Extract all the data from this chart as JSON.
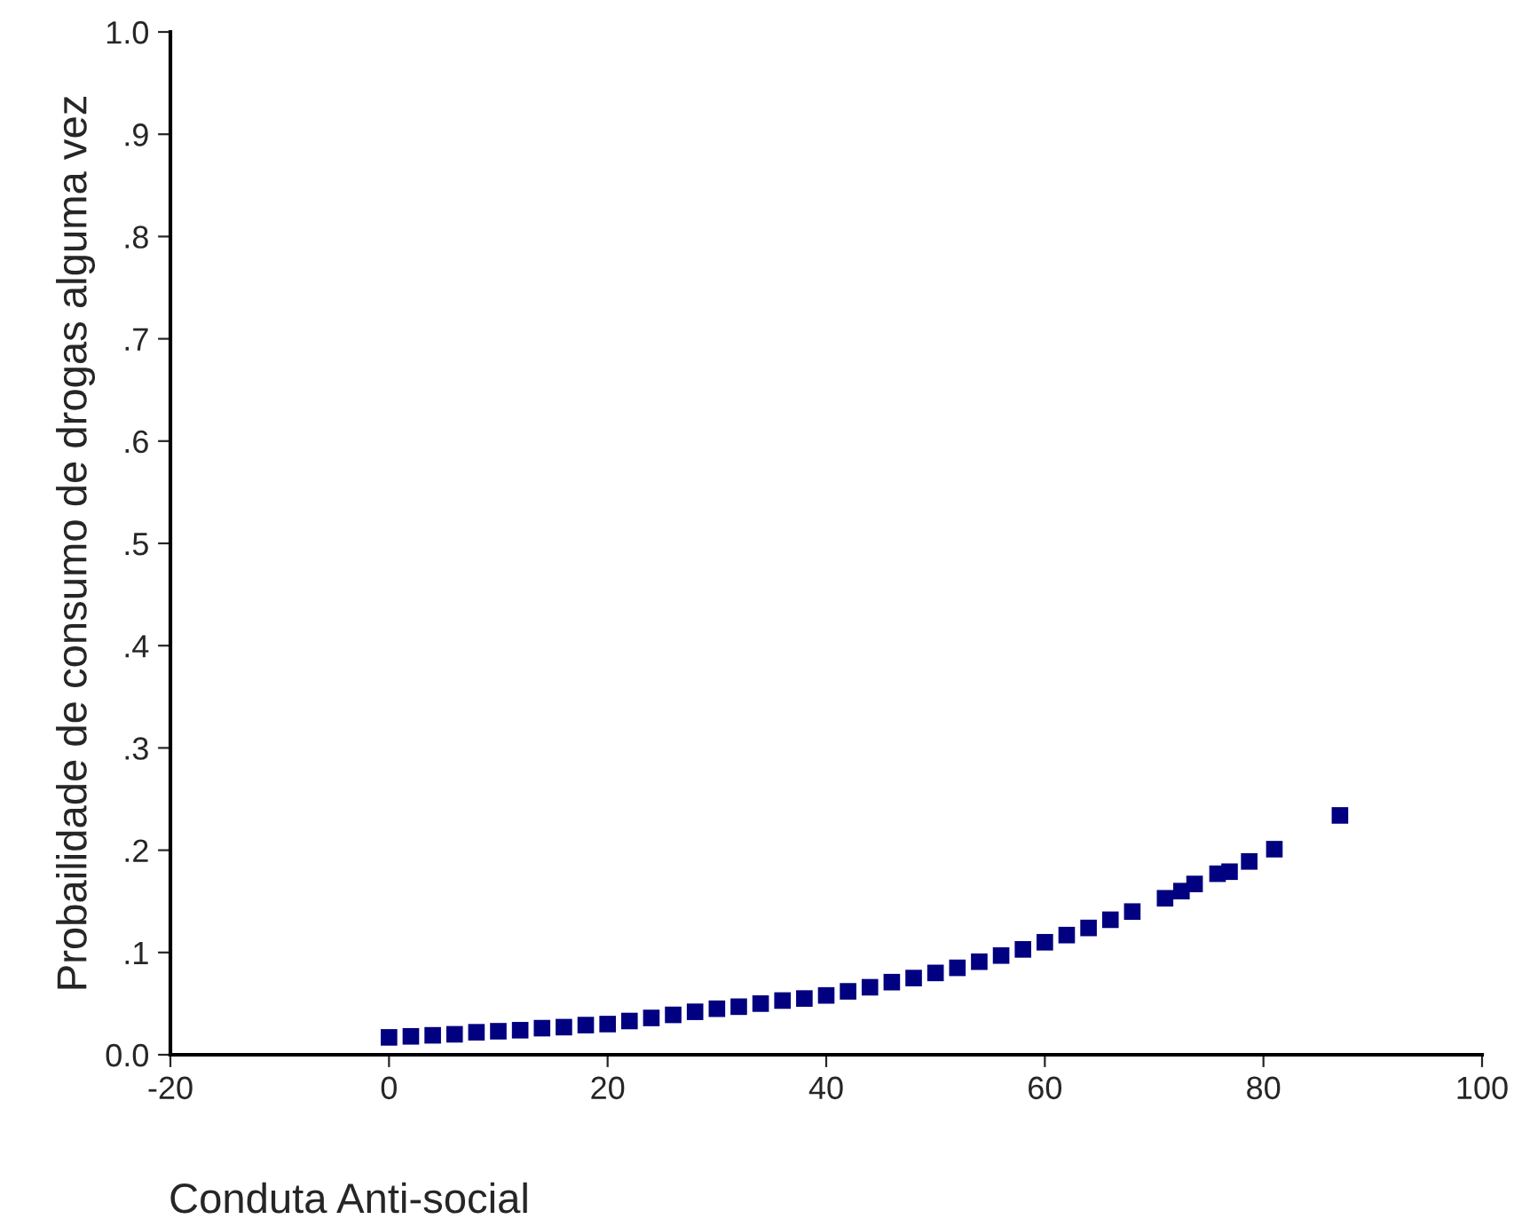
{
  "chart_data": {
    "type": "scatter",
    "xlabel": "Conduta Anti-social",
    "ylabel": "Probailidade de consumo de drogas alguma vez",
    "x": [
      0,
      2,
      4,
      6,
      8,
      10,
      12,
      14,
      16,
      18,
      20,
      22,
      24,
      26,
      28,
      30,
      32,
      34,
      36,
      38,
      40,
      42,
      44,
      46,
      48,
      50,
      52,
      54,
      56,
      58,
      60,
      62,
      64,
      66,
      68,
      71,
      72.5,
      73.7,
      75.8,
      76.9,
      78.7,
      81,
      87
    ],
    "series": [
      {
        "color": "#000080",
        "values": [
          0.017,
          0.018,
          0.019,
          0.02,
          0.022,
          0.023,
          0.024,
          0.026,
          0.027,
          0.029,
          0.03,
          0.033,
          0.036,
          0.039,
          0.042,
          0.045,
          0.047,
          0.05,
          0.053,
          0.055,
          0.058,
          0.062,
          0.066,
          0.071,
          0.075,
          0.08,
          0.085,
          0.091,
          0.097,
          0.103,
          0.11,
          0.117,
          0.124,
          0.132,
          0.14,
          0.153,
          0.16,
          0.167,
          0.177,
          0.179,
          0.189,
          0.201,
          0.234
        ]
      }
    ],
    "marker": "square",
    "xlim": [
      -20,
      100
    ],
    "xticks": [
      -20,
      0,
      20,
      40,
      60,
      80,
      100
    ],
    "ylim": [
      0,
      1
    ],
    "yticks": [
      {
        "value": 0,
        "label": "0.0"
      },
      {
        "value": 0.1,
        "label": ".1"
      },
      {
        "value": 0.2,
        "label": ".2"
      },
      {
        "value": 0.3,
        "label": ".3"
      },
      {
        "value": 0.4,
        "label": ".4"
      },
      {
        "value": 0.5,
        "label": ".5"
      },
      {
        "value": 0.6,
        "label": ".6"
      },
      {
        "value": 0.7,
        "label": ".7"
      },
      {
        "value": 0.8,
        "label": ".8"
      },
      {
        "value": 0.9,
        "label": ".9"
      },
      {
        "value": 1,
        "label": "1.0"
      }
    ],
    "grid": false,
    "legend": false
  }
}
